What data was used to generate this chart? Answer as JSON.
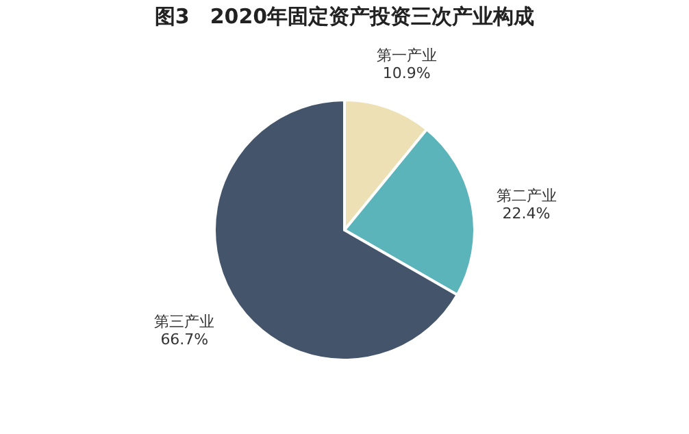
{
  "chart_data": {
    "type": "pie",
    "title": "图3　2020年固定资产投资三次产业构成",
    "categories": [
      "第一产业",
      "第二产业",
      "第三产业"
    ],
    "values": [
      10.9,
      22.4,
      66.7
    ],
    "colors": [
      "#ede0b5",
      "#5bb4b9",
      "#44546a"
    ],
    "value_labels": [
      "10.9%",
      "22.4%",
      "66.7%"
    ]
  }
}
